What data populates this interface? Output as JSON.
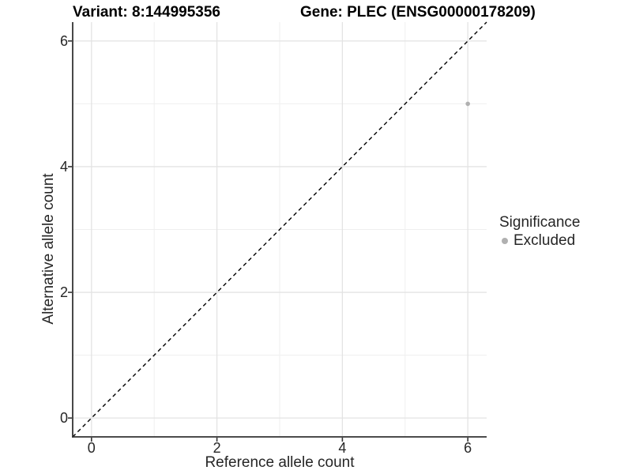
{
  "colors": {
    "point": "#b0b0b0",
    "legend_key": "#b0b0b0",
    "grid_major": "#e3e3e3",
    "grid_minor": "#efefef",
    "axis_line": "#333333",
    "tick_mark": "#333333",
    "reference_line": "#000000",
    "text": "#262626",
    "title_text": "#000000",
    "background": "#ffffff"
  },
  "chart_data": {
    "type": "scatter",
    "title_left": "Variant: 8:144995356",
    "title_right": "Gene: PLEC (ENSG00000178209)",
    "xlabel": "Reference allele count",
    "ylabel": "Alternative allele count",
    "xlim": [
      -0.3,
      6.3
    ],
    "ylim": [
      -0.3,
      6.3
    ],
    "x_ticks": [
      0,
      2,
      4,
      6
    ],
    "y_ticks": [
      0,
      2,
      4,
      6
    ],
    "x_minor_ticks": [
      1,
      3,
      5
    ],
    "y_minor_ticks": [
      1,
      3,
      5
    ],
    "grid": true,
    "legend_position": "right",
    "legend_title": "Significance",
    "series": [
      {
        "name": "Excluded",
        "color": "#b0b0b0",
        "points": [
          {
            "x": 6,
            "y": 5
          }
        ]
      }
    ],
    "reference_line": {
      "equation": "y = x",
      "style": "dashed",
      "color": "#000000"
    }
  }
}
